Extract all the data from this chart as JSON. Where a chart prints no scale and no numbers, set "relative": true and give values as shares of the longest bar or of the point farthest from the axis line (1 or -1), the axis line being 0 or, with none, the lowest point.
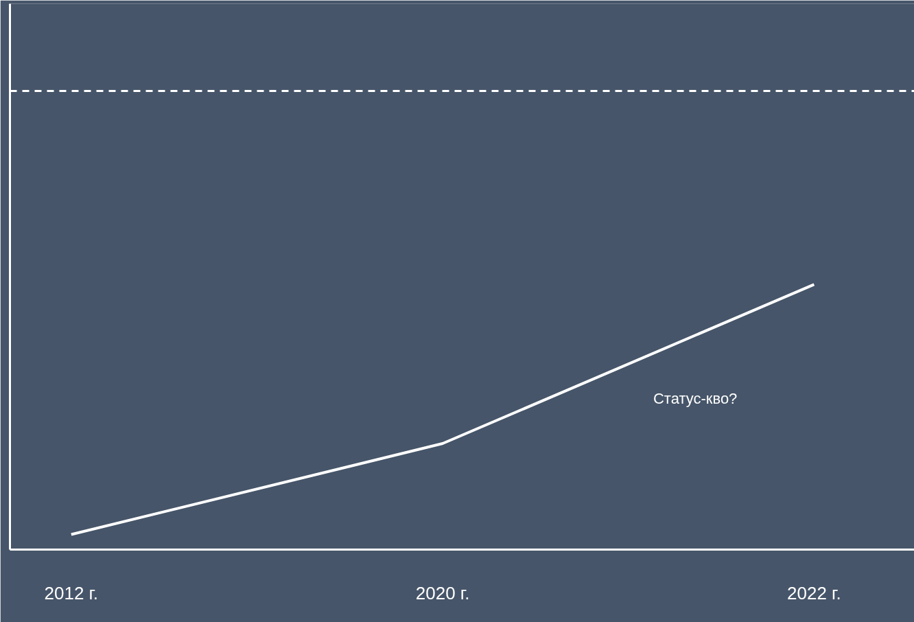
{
  "chart_data": {
    "type": "line",
    "relative": true,
    "categories": [
      "2012 г.",
      "2020 г.",
      "2022 г."
    ],
    "series": [
      {
        "color": "#ffffff",
        "values": [
          0.057,
          0.4,
          1
        ]
      }
    ],
    "ref_lines": [
      {
        "axis": "y",
        "value": 1.73,
        "color": "#ffffff",
        "line_style": "dashed"
      }
    ],
    "annotations": [
      "Статус-кво?"
    ],
    "grid": false,
    "marker": "none",
    "line_style": "solid"
  }
}
